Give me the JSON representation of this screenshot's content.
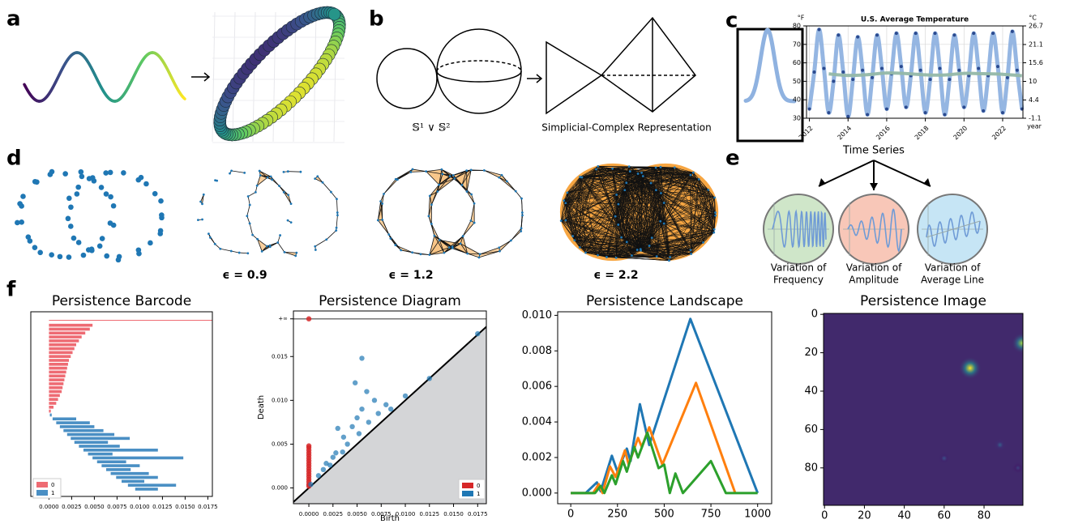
{
  "panel_labels": [
    "a",
    "b",
    "c",
    "d",
    "e",
    "f"
  ],
  "b": {
    "wedge_label": "𝕊¹ ∨ 𝕊²",
    "complex_label": "Simplicial-Complex Representation"
  },
  "d": {
    "epsilon_labels": [
      "ϵ = 0.9",
      "ϵ = 1.2",
      "ϵ = 2.2"
    ]
  },
  "e": {
    "title": "Time Series",
    "variations": [
      [
        "Variation of",
        "Frequency"
      ],
      [
        "Variation of",
        "Amplitude"
      ],
      [
        "Variation of",
        "Average Line"
      ]
    ]
  },
  "chart_data": [
    {
      "type": "temperature",
      "title": "U.S. Average Temperature",
      "y_label": "°F",
      "y2_label": "°C",
      "x_label": "year",
      "xlim": [
        2011.85,
        2023.05
      ],
      "xticks": [
        2012,
        2014,
        2016,
        2018,
        2020,
        2022
      ],
      "ylim": [
        30,
        80
      ],
      "yticks": [
        30,
        40,
        50,
        60,
        70,
        80
      ],
      "y2lim": [
        -1.1,
        26.7
      ],
      "y2ticks": [
        -1.1,
        4.4,
        10,
        15.6,
        21.1,
        26.7
      ],
      "grid": true,
      "series": [
        {
          "color": "#8fb2e0",
          "marker_color": "#2b4a8f",
          "x": [
            2012,
            2012.25,
            2012.5,
            2012.75,
            2013,
            2013.25,
            2013.5,
            2013.75,
            2014,
            2014.25,
            2014.5,
            2014.75,
            2015,
            2015.25,
            2015.5,
            2015.75,
            2016,
            2016.25,
            2016.5,
            2016.75,
            2017,
            2017.25,
            2017.5,
            2017.75,
            2018,
            2018.25,
            2018.5,
            2018.75,
            2019,
            2019.25,
            2019.5,
            2019.75,
            2020,
            2020.25,
            2020.5,
            2020.75,
            2021,
            2021.25,
            2021.5,
            2021.75,
            2022,
            2022.25,
            2022.5,
            2022.75,
            2023
          ],
          "values": [
            35,
            55,
            78,
            57,
            33,
            50,
            75,
            55,
            31,
            51,
            74,
            56,
            32,
            52,
            75,
            57,
            35,
            54,
            76,
            58,
            36,
            53,
            76,
            56,
            33,
            51,
            76,
            57,
            32,
            51,
            75,
            56,
            36,
            53,
            76,
            57,
            34,
            53,
            76,
            58,
            33,
            52,
            77,
            56,
            35
          ]
        },
        {
          "color": "#93b8a8",
          "x": [
            2013,
            2014,
            2015,
            2016,
            2017,
            2018,
            2019,
            2020,
            2021,
            2022,
            2023
          ],
          "values": [
            54,
            53.2,
            53.6,
            54.5,
            54.2,
            53.5,
            53.4,
            54.3,
            54.1,
            53.8,
            53
          ]
        }
      ]
    },
    {
      "type": "barcode",
      "title": "Persistence Barcode",
      "legend": "lower left",
      "xlim": [
        -0.002,
        0.018
      ],
      "xticks": [
        {
          "value": 0,
          "label": "0.0000"
        },
        {
          "value": 0.0025,
          "label": "0.0025"
        },
        {
          "value": 0.005,
          "label": "0.0050"
        },
        {
          "value": 0.0075,
          "label": "0.0075"
        },
        {
          "value": 0.01,
          "label": "0.0100"
        },
        {
          "value": 0.0125,
          "label": "0.0125"
        },
        {
          "value": 0.015,
          "label": "0.0150"
        },
        {
          "value": 0.0175,
          "label": "0.0175"
        }
      ],
      "series": [
        {
          "name": "0",
          "color": "#ee6b73",
          "birth": [
            0,
            0,
            0,
            0,
            0,
            0,
            0,
            0,
            0,
            0,
            0,
            0,
            0,
            0,
            0,
            0,
            0,
            0,
            0,
            0,
            0,
            0,
            0,
            0
          ],
          "death": [
            null,
            0.0048,
            0.0045,
            0.004,
            0.0036,
            0.0033,
            0.003,
            0.0028,
            0.0026,
            0.0024,
            0.0022,
            0.0021,
            0.002,
            0.0019,
            0.0018,
            0.0017,
            0.0016,
            0.0015,
            0.0014,
            0.0012,
            0.001,
            0.0008,
            0.0005,
            0.0002
          ]
        },
        {
          "name": "1",
          "color": "#4a8fc4",
          "birth": [
            0.0001,
            0.0004,
            0.0008,
            0.0012,
            0.0016,
            0.002,
            0.0024,
            0.0028,
            0.0033,
            0.0038,
            0.0043,
            0.0048,
            0.0053,
            0.0058,
            0.0063,
            0.0068,
            0.0074,
            0.008,
            0.0087,
            0.0095
          ],
          "death": [
            0.0003,
            0.003,
            0.0045,
            0.005,
            0.006,
            0.0072,
            0.0089,
            0.0065,
            0.0078,
            0.012,
            0.007,
            0.0148,
            0.0085,
            0.01,
            0.009,
            0.011,
            0.012,
            0.0105,
            0.014,
            0.012
          ]
        }
      ]
    },
    {
      "type": "diagram",
      "title": "Persistence Diagram",
      "x_label": "Birth",
      "y_label": "Death",
      "legend": "lower right",
      "xlim": [
        -0.0016,
        0.0184
      ],
      "ylim": [
        -0.0018,
        0.0202
      ],
      "xticks": [
        {
          "value": 0,
          "label": "0.0000"
        },
        {
          "value": 0.0025,
          "label": "0.0025"
        },
        {
          "value": 0.005,
          "label": "0.0050"
        },
        {
          "value": 0.0075,
          "label": "0.0075"
        },
        {
          "value": 0.01,
          "label": "0.0100"
        },
        {
          "value": 0.0125,
          "label": "0.0125"
        },
        {
          "value": 0.015,
          "label": "0.0150"
        },
        {
          "value": 0.0175,
          "label": "0.0175"
        }
      ],
      "yticks": [
        {
          "value": 0,
          "label": "0.000"
        },
        {
          "value": 0.005,
          "label": "0.005"
        },
        {
          "value": 0.01,
          "label": "0.010"
        },
        {
          "value": 0.015,
          "label": "0.015"
        },
        {
          "value": 0.0193,
          "label": "+∞"
        }
      ],
      "series": [
        {
          "name": "0",
          "color": "#d62728",
          "birth": [
            0,
            0,
            0,
            0,
            0,
            0,
            0,
            0,
            0,
            0,
            0,
            0,
            0,
            0,
            0,
            0,
            0,
            0
          ],
          "death": [
            null,
            0.0048,
            0.0046,
            0.0043,
            0.004,
            0.0037,
            0.0034,
            0.0031,
            0.0028,
            0.0025,
            0.0022,
            0.0019,
            0.0016,
            0.0013,
            0.001,
            0.0007,
            0.0004,
            0.0002
          ]
        },
        {
          "name": "1",
          "color": "#1f77b4",
          "birth": [
            0.0002,
            0.001,
            0.0015,
            0.0018,
            0.0022,
            0.0025,
            0.0028,
            0.003,
            0.0035,
            0.0036,
            0.004,
            0.0045,
            0.0048,
            0.005,
            0.0052,
            0.0055,
            0.0055,
            0.006,
            0.0062,
            0.0068,
            0.0072,
            0.008,
            0.0085,
            0.01,
            0.0125,
            0.0175
          ],
          "death": [
            0.0004,
            0.0014,
            0.0021,
            0.0028,
            0.0026,
            0.0035,
            0.004,
            0.0068,
            0.0041,
            0.0058,
            0.005,
            0.007,
            0.012,
            0.008,
            0.0062,
            0.0148,
            0.009,
            0.011,
            0.0075,
            0.01,
            0.0085,
            0.0095,
            0.009,
            0.0105,
            0.0125,
            0.0176
          ]
        }
      ]
    },
    {
      "type": "landscape",
      "title": "Persistence Landscape",
      "xlim": [
        -70,
        1075
      ],
      "ylim": [
        -0.0006,
        0.0102
      ],
      "xticks": [
        0,
        250,
        500,
        750,
        1000
      ],
      "yticks": [
        {
          "value": 0,
          "label": "0.000"
        },
        {
          "value": 0.002,
          "label": "0.002"
        },
        {
          "value": 0.004,
          "label": "0.004"
        },
        {
          "value": 0.006,
          "label": "0.006"
        },
        {
          "value": 0.008,
          "label": "0.008"
        },
        {
          "value": 0.01,
          "label": "0.010"
        }
      ],
      "series": [
        {
          "color": "#1f77b4",
          "x": [
            0,
            80,
            140,
            160,
            220,
            250,
            300,
            320,
            370,
            420,
            640,
            1000
          ],
          "values": [
            0,
            0,
            0.0006,
            0.0001,
            0.0021,
            0.0012,
            0.0025,
            0.0018,
            0.005,
            0.0027,
            0.0098,
            0
          ]
        },
        {
          "color": "#ff7f0e",
          "x": [
            0,
            120,
            150,
            170,
            210,
            240,
            290,
            310,
            360,
            380,
            420,
            490,
            670,
            880
          ],
          "values": [
            0,
            0,
            0.0005,
            0,
            0.0015,
            0.0009,
            0.0024,
            0.0016,
            0.0031,
            0.0026,
            0.0037,
            0.0016,
            0.0062,
            0
          ]
        },
        {
          "color": "#2ca02c",
          "x": [
            0,
            130,
            160,
            180,
            220,
            240,
            280,
            300,
            340,
            360,
            410,
            470,
            500,
            530,
            560,
            600,
            750,
            830,
            1000
          ],
          "values": [
            0,
            0,
            0.0004,
            0,
            0.001,
            0.0005,
            0.0018,
            0.0012,
            0.0026,
            0.002,
            0.0034,
            0.0014,
            0.0016,
            0,
            0.0011,
            0,
            0.0018,
            0,
            0
          ]
        }
      ]
    },
    {
      "type": "heatmap",
      "title": "Persistence Image",
      "background": "#41296c",
      "xlim": [
        -0.5,
        99.5
      ],
      "ylim": [
        99.5,
        -0.5
      ],
      "xticks": [
        0,
        20,
        40,
        60,
        80
      ],
      "yticks": [
        0,
        20,
        40,
        60,
        80
      ],
      "spots": {
        "x": [
          73,
          99,
          60,
          88,
          97
        ],
        "y": [
          28,
          15,
          75,
          68,
          80
        ],
        "values": [
          1,
          0.85,
          0.25,
          0.3,
          0.2
        ]
      }
    }
  ]
}
